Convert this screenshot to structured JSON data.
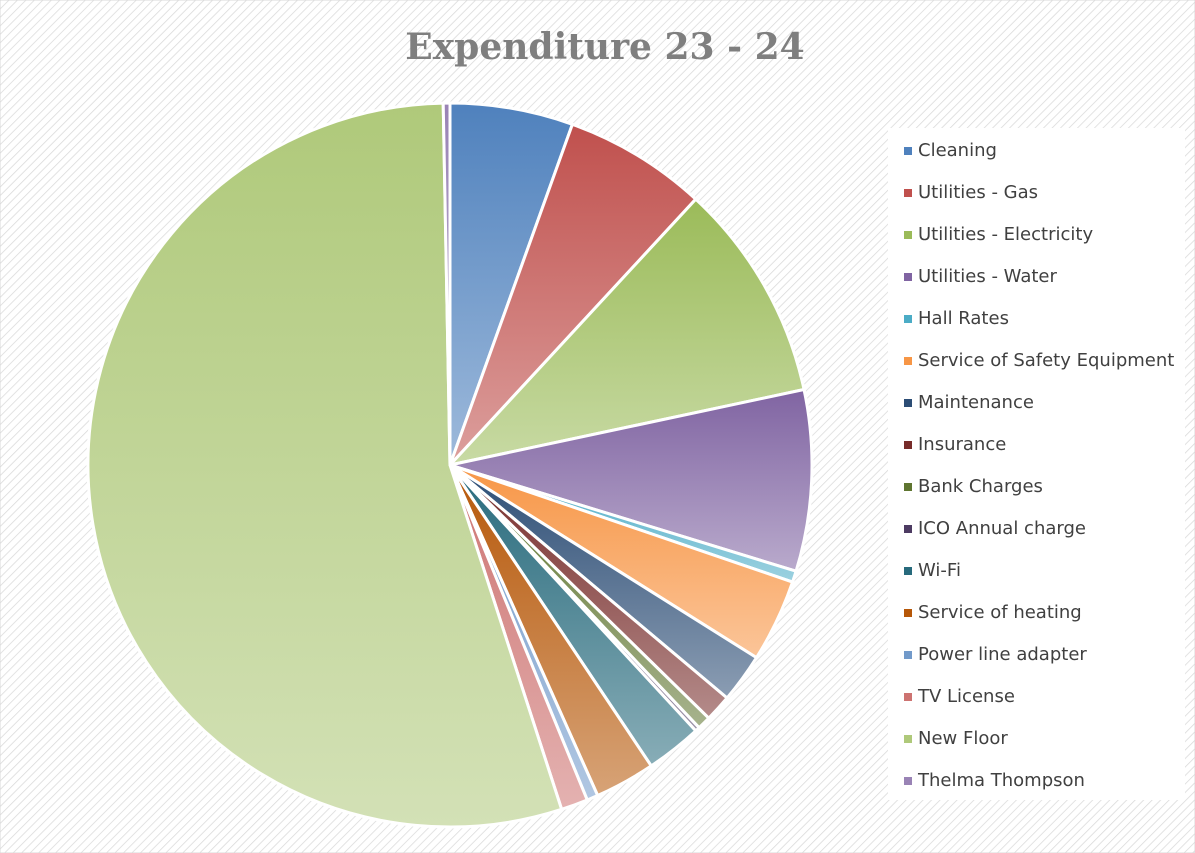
{
  "chart_data": {
    "type": "pie",
    "title": "Expenditure 23 - 24",
    "categories": [
      "Cleaning",
      "Utilities - Gas",
      "Utilities - Electricity",
      "Utilities - Water",
      "Hall Rates",
      "Service of Safety Equipment",
      "Maintenance",
      "Insurance",
      "Bank Charges",
      "ICO Annual charge",
      "Wi-Fi",
      "Service of heating",
      "Power line adapter",
      "TV License",
      "New Floor",
      "Thelma Thompson"
    ],
    "values": [
      5.5,
      6.4,
      9.8,
      8.1,
      0.5,
      3.7,
      2.2,
      1.2,
      0.6,
      0.2,
      2.5,
      2.7,
      0.5,
      1.2,
      54.8,
      0.3
    ],
    "colors": [
      "#4f81bd",
      "#c0504d",
      "#9bbb59",
      "#8064a2",
      "#4bacc6",
      "#f79646",
      "#2c4d75",
      "#772c2a",
      "#5f7530",
      "#4d3b62",
      "#276a7c",
      "#b65708",
      "#729aca",
      "#cd7371",
      "#afc97a",
      "#9983b5"
    ],
    "legend": "right"
  }
}
